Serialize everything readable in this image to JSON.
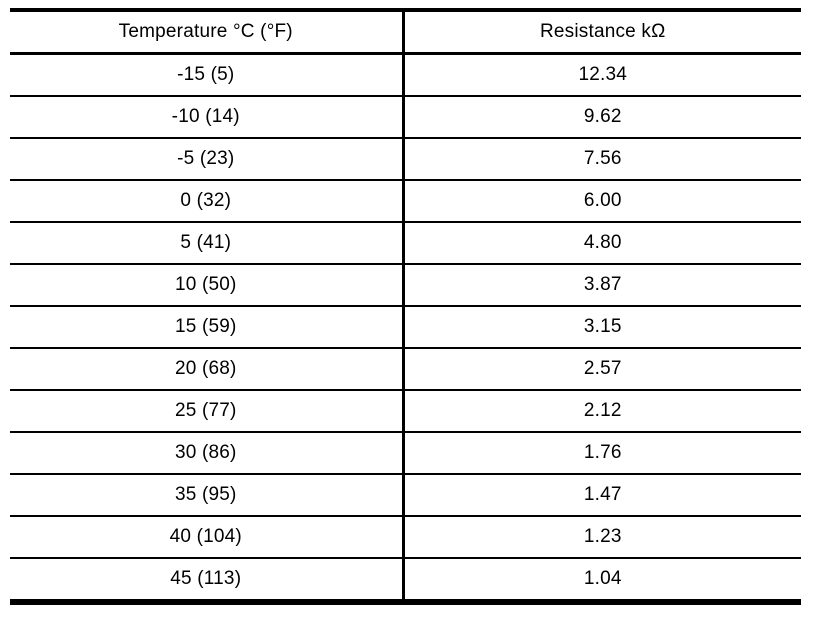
{
  "table": {
    "headers": [
      "Temperature °C (°F)",
      "Resistance kΩ"
    ],
    "rows": [
      {
        "temperature": "-15 (5)",
        "resistance": "12.34"
      },
      {
        "temperature": "-10 (14)",
        "resistance": "9.62"
      },
      {
        "temperature": "-5 (23)",
        "resistance": "7.56"
      },
      {
        "temperature": "0 (32)",
        "resistance": "6.00"
      },
      {
        "temperature": "5 (41)",
        "resistance": "4.80"
      },
      {
        "temperature": "10 (50)",
        "resistance": "3.87"
      },
      {
        "temperature": "15 (59)",
        "resistance": "3.15"
      },
      {
        "temperature": "20 (68)",
        "resistance": "2.57"
      },
      {
        "temperature": "25 (77)",
        "resistance": "2.12"
      },
      {
        "temperature": "30 (86)",
        "resistance": "1.76"
      },
      {
        "temperature": "35 (95)",
        "resistance": "1.47"
      },
      {
        "temperature": "40 (104)",
        "resistance": "1.23"
      },
      {
        "temperature": "45 (113)",
        "resistance": "1.04"
      }
    ],
    "colors": {
      "line": "#000000",
      "background": "#ffffff",
      "text": "#000000"
    }
  }
}
